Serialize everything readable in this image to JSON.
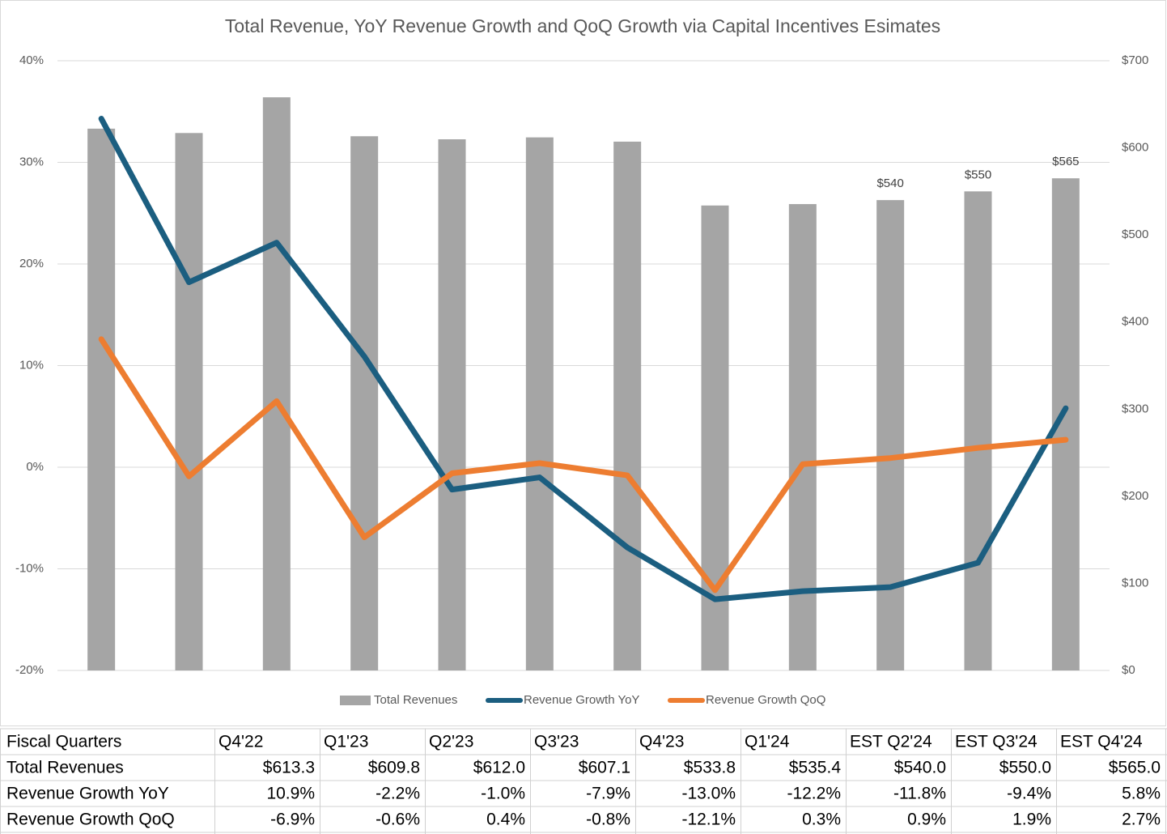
{
  "chart_data": {
    "type": "bar-line",
    "title": "Total Revenue, YoY Revenue Growth and QoQ Growth via Capital Incentives Esimates",
    "categories": [
      null,
      null,
      null,
      null,
      null,
      null,
      null,
      null,
      null,
      null,
      null,
      null
    ],
    "series": [
      {
        "name": "Total Revenues",
        "type": "bar",
        "axis": "y2",
        "color": "#a5a5a5",
        "values": [
          622,
          617,
          658,
          613.3,
          609.8,
          612.0,
          607.1,
          533.8,
          535.4,
          540.0,
          550.0,
          565.0
        ],
        "value_labels": [
          null,
          null,
          null,
          null,
          null,
          null,
          null,
          null,
          null,
          "$540",
          "$550",
          "$565"
        ]
      },
      {
        "name": "Revenue Growth YoY",
        "type": "line",
        "axis": "y",
        "color": "#1b5e80",
        "values": [
          34.3,
          18.2,
          22.1,
          10.9,
          -2.2,
          -1.0,
          -7.9,
          -13.0,
          -12.2,
          -11.8,
          -9.4,
          5.8
        ]
      },
      {
        "name": "Revenue Growth QoQ",
        "type": "line",
        "axis": "y",
        "color": "#ed7d31",
        "values": [
          12.6,
          -0.9,
          6.5,
          -6.9,
          -0.6,
          0.4,
          -0.8,
          -12.1,
          0.3,
          0.9,
          1.9,
          2.7
        ]
      }
    ],
    "ylim": [
      -20,
      40
    ],
    "yticks": [
      {
        "value": -20,
        "label": "-20%"
      },
      {
        "value": -10,
        "label": "-10%"
      },
      {
        "value": 0,
        "label": "0%"
      },
      {
        "value": 10,
        "label": "10%"
      },
      {
        "value": 20,
        "label": "20%"
      },
      {
        "value": 30,
        "label": "30%"
      },
      {
        "value": 40,
        "label": "40%"
      }
    ],
    "y2lim": [
      0,
      700
    ],
    "y2ticks": [
      {
        "value": 0,
        "label": "$0"
      },
      {
        "value": 100,
        "label": "$100"
      },
      {
        "value": 200,
        "label": "$200"
      },
      {
        "value": 300,
        "label": "$300"
      },
      {
        "value": 400,
        "label": "$400"
      },
      {
        "value": 500,
        "label": "$500"
      },
      {
        "value": 600,
        "label": "$600"
      },
      {
        "value": 700,
        "label": "$700"
      }
    ],
    "grid": true,
    "legend": "bottom"
  },
  "table": {
    "header": [
      "Fiscal Quarters",
      "Q4'22",
      "Q1'23",
      "Q2'23",
      "Q3'23",
      "Q4'23",
      "Q1'24",
      "EST Q2'24",
      "EST Q3'24",
      "EST Q4'24"
    ],
    "rows": [
      [
        "Total Revenues",
        "$613.3",
        "$609.8",
        "$612.0",
        "$607.1",
        "$533.8",
        "$535.4",
        "$540.0",
        "$550.0",
        "$565.0"
      ],
      [
        "Revenue Growth YoY",
        "10.9%",
        "-2.2%",
        "-1.0%",
        "-7.9%",
        "-13.0%",
        "-12.2%",
        "-11.8%",
        "-9.4%",
        "5.8%"
      ],
      [
        "Revenue Growth QoQ",
        "-6.9%",
        "-0.6%",
        "0.4%",
        "-0.8%",
        "-12.1%",
        "0.3%",
        "0.9%",
        "1.9%",
        "2.7%"
      ]
    ]
  }
}
